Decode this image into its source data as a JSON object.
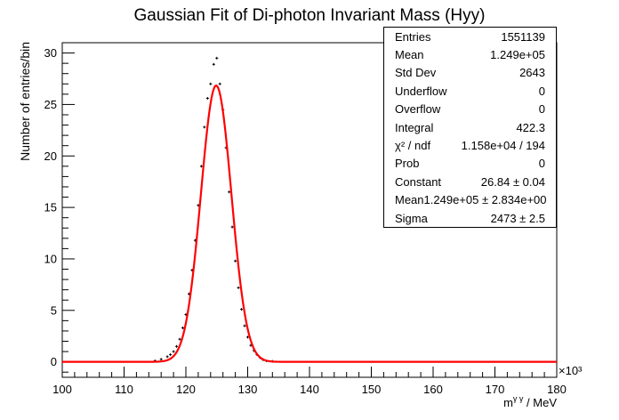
{
  "chart_data": {
    "type": "line",
    "title": "Gaussian Fit of Di-photon Invariant Mass (Hyy)",
    "xlabel_base": "m",
    "xlabel_sup": "γ γ",
    "xlabel_unit": " / MeV",
    "ylabel": "Number of entries/bin",
    "x_multiplier": "×10³",
    "xlim": [
      100,
      180
    ],
    "ylim": [
      -1.5,
      31
    ],
    "x_ticks": [
      100,
      110,
      120,
      130,
      140,
      150,
      160,
      170,
      180
    ],
    "x_tick_labels": [
      "100",
      "110",
      "120",
      "130",
      "140",
      "150",
      "160",
      "170",
      "180"
    ],
    "y_ticks": [
      0,
      5,
      10,
      15,
      20,
      25,
      30
    ],
    "y_tick_labels": [
      "0",
      "5",
      "10",
      "15",
      "20",
      "25",
      "30"
    ],
    "grid": false,
    "legend": "none",
    "series": [
      {
        "style": "points-with-error-bars",
        "x": [
          115.0,
          116.0,
          117.0,
          117.5,
          118.0,
          118.5,
          119.0,
          119.5,
          120.0,
          120.5,
          121.0,
          121.5,
          122.0,
          122.5,
          123.0,
          123.5,
          124.0,
          124.5,
          125.0,
          125.5,
          126.0,
          126.5,
          127.0,
          127.5,
          128.0,
          128.5,
          129.0,
          129.5,
          130.0,
          130.5,
          131.0,
          131.5,
          132.0,
          132.5,
          133.0,
          134.0
        ],
        "y": [
          0.1,
          0.25,
          0.5,
          0.7,
          1.0,
          1.5,
          2.2,
          3.3,
          4.6,
          6.6,
          8.9,
          11.8,
          15.2,
          19.0,
          22.8,
          25.6,
          27.0,
          28.9,
          29.5,
          27.0,
          24.5,
          20.8,
          16.5,
          13.1,
          9.8,
          7.2,
          5.1,
          3.5,
          2.4,
          1.6,
          1.1,
          0.7,
          0.4,
          0.2,
          0.1,
          0.05
        ]
      },
      {
        "style": "gaussian-fit",
        "constant": 26.84,
        "mean": 124.9,
        "sigma": 2.473,
        "color": "#ff0000"
      }
    ]
  },
  "stats": [
    {
      "label": "Entries",
      "value": "1551139"
    },
    {
      "label": "Mean",
      "value": "1.249e+05"
    },
    {
      "label": "Std Dev",
      "value": "2643"
    },
    {
      "label": "Underflow",
      "value": "0"
    },
    {
      "label": "Overflow",
      "value": "0"
    },
    {
      "label": "Integral",
      "value": "422.3"
    },
    {
      "label": "χ² / ndf",
      "value": "1.158e+04 / 194"
    },
    {
      "label": "Prob",
      "value": "0"
    },
    {
      "label": "Constant",
      "value": "26.84 ± 0.04"
    },
    {
      "label": "Mean",
      "value": "1.249e+05 ± 2.834e+00"
    },
    {
      "label": "Sigma",
      "value": "2473 ± 2.5"
    }
  ]
}
